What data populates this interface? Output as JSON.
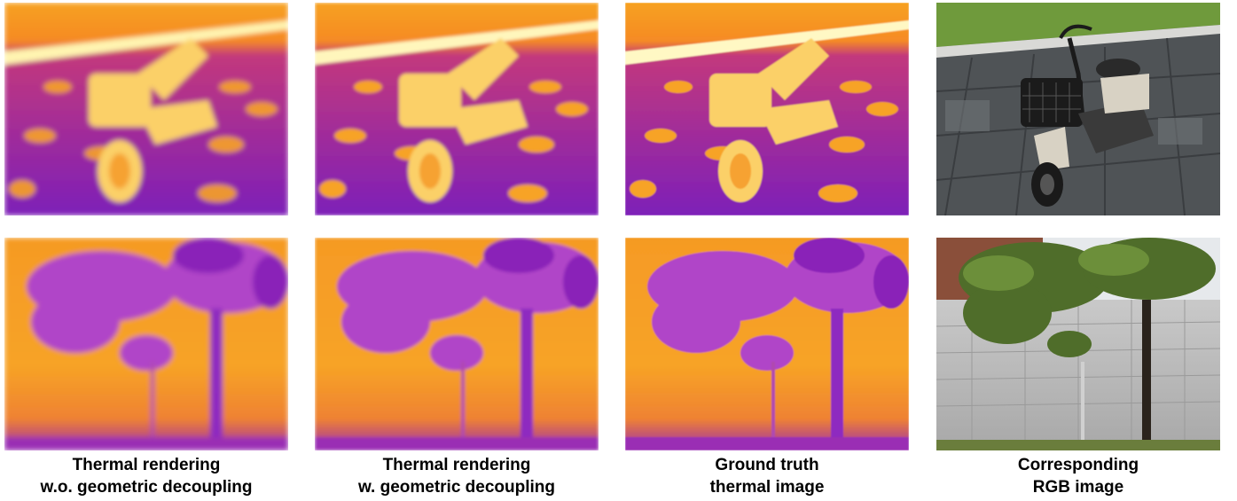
{
  "figure": {
    "columns": [
      {
        "line1": "Thermal rendering",
        "line2": "w.o. geometric decoupling"
      },
      {
        "line1": "Thermal rendering",
        "line2": "w. geometric decoupling"
      },
      {
        "line1": "Ground truth",
        "line2": "thermal image"
      },
      {
        "line1": "Corresponding",
        "line2": "RGB image"
      }
    ],
    "rows": [
      "scooter-scene",
      "tree-scene"
    ]
  }
}
